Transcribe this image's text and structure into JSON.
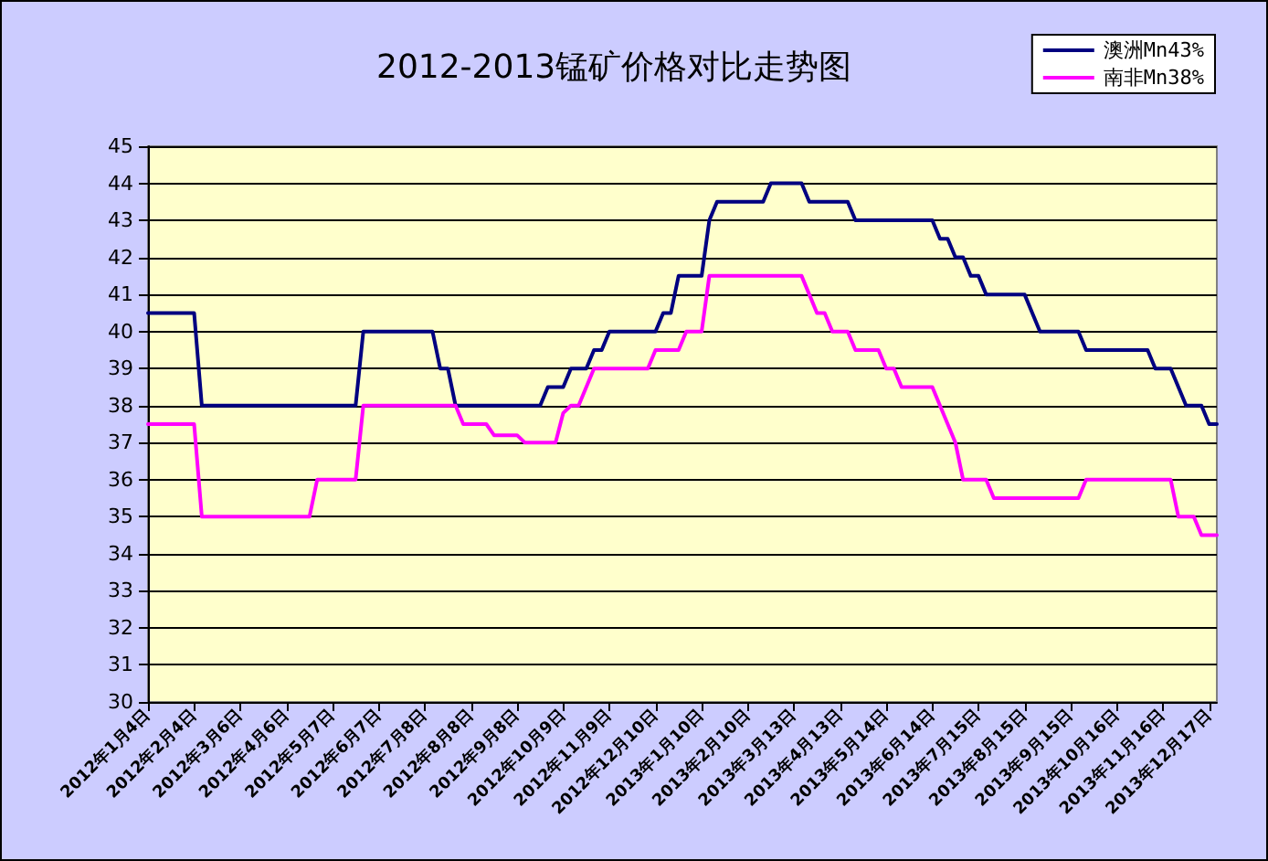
{
  "chart_data": {
    "type": "line",
    "title": "2012-2013锰矿价格对比走势图",
    "categories": [
      "2012年1月4日",
      null,
      null,
      null,
      null,
      null,
      "2012年2月4日",
      null,
      null,
      null,
      null,
      null,
      "2012年3月6日",
      null,
      null,
      null,
      null,
      null,
      "2012年4月6日",
      null,
      null,
      null,
      null,
      null,
      "2012年5月7日",
      null,
      null,
      null,
      null,
      null,
      "2012年6月7日",
      null,
      null,
      null,
      null,
      null,
      "2012年7月8日",
      null,
      null,
      null,
      null,
      null,
      "2012年8月8日",
      null,
      null,
      null,
      null,
      null,
      "2012年9月8日",
      null,
      null,
      null,
      null,
      null,
      "2012年10月9日",
      null,
      null,
      null,
      null,
      null,
      "2012年11月9日",
      null,
      null,
      null,
      null,
      null,
      "2012年12月10日",
      null,
      null,
      null,
      null,
      null,
      "2013年1月10日",
      null,
      null,
      null,
      null,
      null,
      "2013年2月10日",
      null,
      null,
      null,
      null,
      null,
      "2013年3月13日",
      null,
      null,
      null,
      null,
      null,
      "2013年4月13日",
      null,
      null,
      null,
      null,
      null,
      "2013年5月14日",
      null,
      null,
      null,
      null,
      null,
      "2013年6月14日",
      null,
      null,
      null,
      null,
      null,
      "2013年7月15日",
      null,
      null,
      null,
      null,
      null,
      "2013年8月15日",
      null,
      null,
      null,
      null,
      null,
      "2013年9月15日",
      null,
      null,
      null,
      null,
      null,
      "2013年10月16日",
      null,
      null,
      null,
      null,
      null,
      "2013年11月16日",
      null,
      null,
      null,
      null,
      null,
      "2013年12月17日",
      null
    ],
    "series": [
      {
        "name": "澳洲Mn43%",
        "color": "#000080",
        "values": [
          40.5,
          40.5,
          40.5,
          40.5,
          40.5,
          40.5,
          40.5,
          38,
          38,
          38,
          38,
          38,
          38,
          38,
          38,
          38,
          38,
          38,
          38,
          38,
          38,
          38,
          38,
          38,
          38,
          38,
          38,
          38,
          40,
          40,
          40,
          40,
          40,
          40,
          40,
          40,
          40,
          40,
          39,
          39,
          38,
          38,
          38,
          38,
          38,
          38,
          38,
          38,
          38,
          38,
          38,
          38,
          38.5,
          38.5,
          38.5,
          39,
          39,
          39,
          39.5,
          39.5,
          40,
          40,
          40,
          40,
          40,
          40,
          40,
          40.5,
          40.5,
          41.5,
          41.5,
          41.5,
          41.5,
          43,
          43.5,
          43.5,
          43.5,
          43.5,
          43.5,
          43.5,
          43.5,
          44,
          44,
          44,
          44,
          44,
          43.5,
          43.5,
          43.5,
          43.5,
          43.5,
          43.5,
          43,
          43,
          43,
          43,
          43,
          43,
          43,
          43,
          43,
          43,
          43,
          42.5,
          42.5,
          42,
          42,
          41.5,
          41.5,
          41,
          41,
          41,
          41,
          41,
          41,
          40.5,
          40,
          40,
          40,
          40,
          40,
          40,
          39.5,
          39.5,
          39.5,
          39.5,
          39.5,
          39.5,
          39.5,
          39.5,
          39.5,
          39,
          39,
          39,
          38.5,
          38,
          38,
          38,
          37.5,
          37.5
        ]
      },
      {
        "name": "南非Mn38%",
        "color": "#ff00ff",
        "values": [
          37.5,
          37.5,
          37.5,
          37.5,
          37.5,
          37.5,
          37.5,
          35,
          35,
          35,
          35,
          35,
          35,
          35,
          35,
          35,
          35,
          35,
          35,
          35,
          35,
          35,
          36,
          36,
          36,
          36,
          36,
          36,
          38,
          38,
          38,
          38,
          38,
          38,
          38,
          38,
          38,
          38,
          38,
          38,
          38,
          37.5,
          37.5,
          37.5,
          37.5,
          37.2,
          37.2,
          37.2,
          37.2,
          37,
          37,
          37,
          37,
          37,
          37.8,
          38,
          38,
          38.5,
          39,
          39,
          39,
          39,
          39,
          39,
          39,
          39,
          39.5,
          39.5,
          39.5,
          39.5,
          40,
          40,
          40,
          41.5,
          41.5,
          41.5,
          41.5,
          41.5,
          41.5,
          41.5,
          41.5,
          41.5,
          41.5,
          41.5,
          41.5,
          41.5,
          41,
          40.5,
          40.5,
          40,
          40,
          40,
          39.5,
          39.5,
          39.5,
          39.5,
          39,
          39,
          38.5,
          38.5,
          38.5,
          38.5,
          38.5,
          38,
          37.5,
          37,
          36,
          36,
          36,
          36,
          35.5,
          35.5,
          35.5,
          35.5,
          35.5,
          35.5,
          35.5,
          35.5,
          35.5,
          35.5,
          35.5,
          35.5,
          36,
          36,
          36,
          36,
          36,
          36,
          36,
          36,
          36,
          36,
          36,
          36,
          35,
          35,
          35,
          34.5,
          34.5,
          34.5
        ]
      }
    ],
    "ylim": [
      30,
      45
    ],
    "yticks": [
      30,
      31,
      32,
      33,
      34,
      35,
      36,
      37,
      38,
      39,
      40,
      41,
      42,
      43,
      44,
      45
    ],
    "grid": "y",
    "legend": "top right",
    "marker": "none",
    "line_style": "solid"
  }
}
